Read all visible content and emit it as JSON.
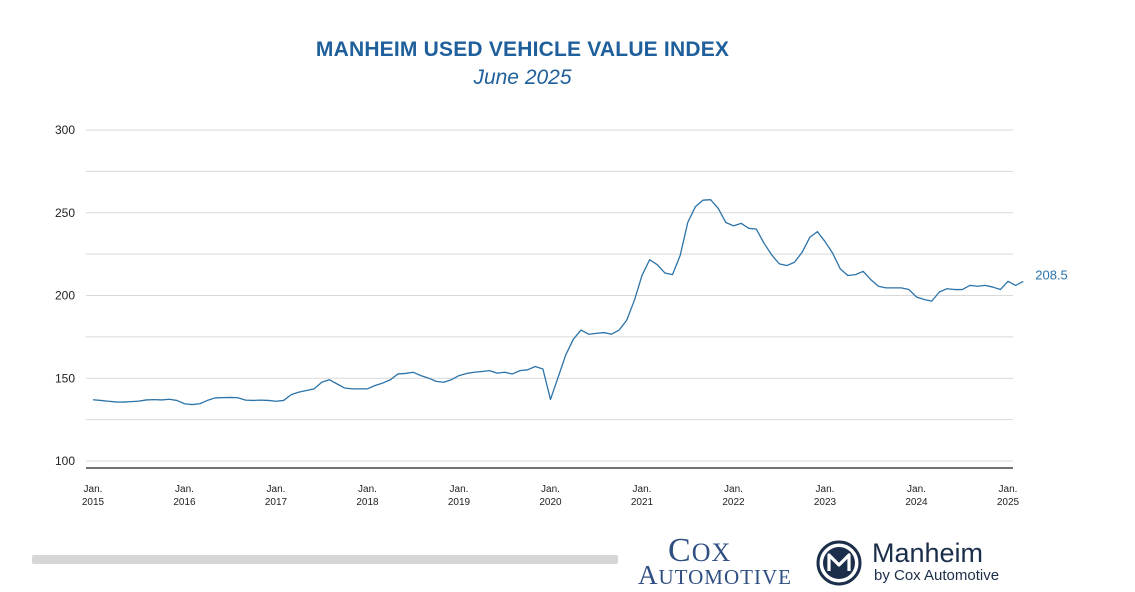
{
  "chart_data": {
    "type": "line",
    "title": "MANHEIM USED VEHICLE VALUE INDEX",
    "subtitle": "June 2025",
    "ylim": [
      100,
      300
    ],
    "yticks": [
      "300",
      "250",
      "200",
      "150",
      "100"
    ],
    "ytick_values": [
      300,
      250,
      200,
      150,
      100
    ],
    "xlim": [
      2015.0,
      2025.0
    ],
    "xticks": [
      {
        "line1": "Jan.",
        "line2": "2015",
        "year": 2015
      },
      {
        "line1": "Jan.",
        "line2": "2016",
        "year": 2016
      },
      {
        "line1": "Jan.",
        "line2": "2017",
        "year": 2017
      },
      {
        "line1": "Jan.",
        "line2": "2018",
        "year": 2018
      },
      {
        "line1": "Jan.",
        "line2": "2019",
        "year": 2019
      },
      {
        "line1": "Jan.",
        "line2": "2020",
        "year": 2020
      },
      {
        "line1": "Jan.",
        "line2": "2021",
        "year": 2021
      },
      {
        "line1": "Jan.",
        "line2": "2022",
        "year": 2022
      },
      {
        "line1": "Jan.",
        "line2": "2023",
        "year": 2023
      },
      {
        "line1": "Jan.",
        "line2": "2024",
        "year": 2024
      },
      {
        "line1": "Jan.",
        "line2": "2025",
        "year": 2025
      }
    ],
    "grid": true,
    "legend": "none",
    "line_color": "#2b73a8",
    "last_value_label": "208.5",
    "series": [
      {
        "start": "2015-01",
        "values": [
          137.0,
          136.6,
          136.1,
          135.7,
          135.6,
          135.9,
          136.2,
          136.9,
          137.1,
          136.9,
          137.3,
          136.6,
          134.6,
          134.1,
          134.6,
          136.6,
          138.1,
          138.3,
          138.4,
          138.2,
          136.8,
          136.6,
          136.8,
          136.6,
          136.1,
          136.6,
          140.1,
          141.6,
          142.6,
          143.6,
          147.6,
          149.1,
          146.6,
          144.1,
          143.6,
          143.6,
          143.6,
          145.6,
          147.1,
          149.1,
          152.6,
          152.9,
          153.6,
          151.6,
          150.1,
          148.1,
          147.6,
          149.1,
          151.6,
          152.9,
          153.6,
          154.1,
          154.6,
          153.1,
          153.6,
          152.6,
          154.6,
          155.1,
          157.1,
          155.6,
          137.2,
          150.6,
          164.1,
          173.6,
          179.1,
          176.6,
          177.1,
          177.6,
          176.6,
          179.1,
          185.1,
          197.1,
          212.1,
          221.6,
          218.6,
          213.6,
          212.6,
          224.1,
          244.1,
          253.6,
          257.6,
          257.9,
          252.6,
          244.1,
          242.1,
          243.6,
          240.6,
          240.1,
          231.6,
          224.6,
          219.1,
          218.1,
          220.1,
          226.1,
          235.1,
          238.6,
          232.6,
          225.6,
          216.1,
          212.1,
          212.6,
          214.6,
          209.6,
          205.6,
          204.6,
          204.6,
          204.6,
          203.6,
          199.1,
          197.6,
          196.6,
          202.1,
          204.1,
          203.6,
          203.6,
          206.1,
          205.6,
          206.1,
          205.1,
          203.6,
          208.6,
          206.1,
          208.5
        ]
      }
    ]
  },
  "logos": {
    "cox_line1": "Cox",
    "cox_line2": "Automotive",
    "manheim_name": "Manheim",
    "manheim_sub": "by Cox Automotive",
    "manheim_mark_letter": "M",
    "colors": {
      "title": "#1f5f9b",
      "cox": "#2f4f82",
      "manheim": "#1b2e4a"
    }
  }
}
